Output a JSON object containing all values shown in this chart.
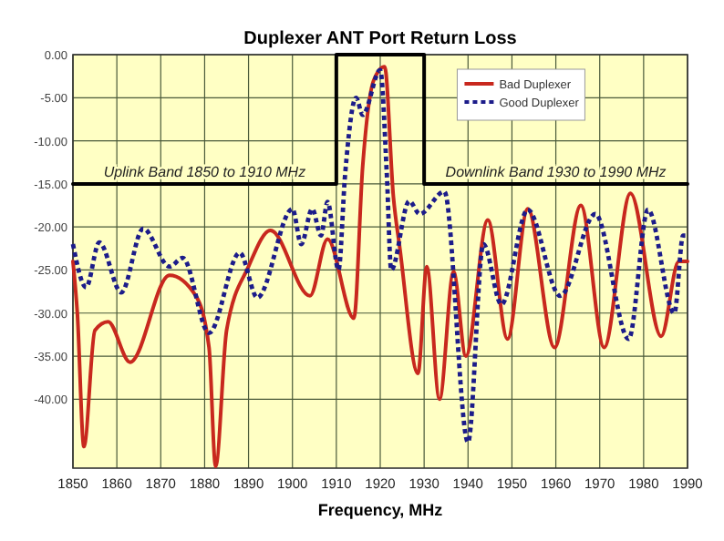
{
  "chart_data": {
    "type": "line",
    "title": "Duplexer ANT Port Return Loss",
    "xlabel": "Frequency, MHz",
    "xlim": [
      1850,
      1990
    ],
    "xticks": [
      1850,
      1860,
      1870,
      1880,
      1890,
      1900,
      1910,
      1920,
      1930,
      1940,
      1950,
      1960,
      1970,
      1980,
      1990
    ],
    "ylim": [
      -48,
      0
    ],
    "yticks": [
      {
        "value": 0,
        "label": "0.00"
      },
      {
        "value": -5,
        "label": "-5.00"
      },
      {
        "value": -10,
        "label": "-10.00"
      },
      {
        "value": -15,
        "label": "-15.00"
      },
      {
        "value": -20,
        "label": "-20.00"
      },
      {
        "value": -25,
        "label": "-25.00"
      },
      {
        "value": -30,
        "label": "-30.00"
      },
      {
        "value": -35,
        "label": "-35.00"
      },
      {
        "value": -40,
        "label": "-40.00"
      }
    ],
    "grid": true,
    "legend": "top",
    "marker": "none",
    "series": [
      {
        "name": "Bad Duplexer",
        "color": "#c8281e",
        "line_style": "solid",
        "x": [
          1850,
          1851,
          1852.5,
          1855,
          1858,
          1863,
          1872,
          1878,
          1881,
          1882.5,
          1885,
          1890,
          1895,
          1904,
          1908,
          1914,
          1916,
          1918.5,
          1921,
          1923,
          1924.5,
          1928.6,
          1930.6,
          1933.5,
          1936.7,
          1939.5,
          1944.5,
          1949,
          1953.6,
          1959.7,
          1965.7,
          1971,
          1977,
          1984,
          1988,
          1990
        ],
        "values": [
          -24,
          -30,
          -45.5,
          -32,
          -31,
          -35.7,
          -25.6,
          -28,
          -34,
          -47.8,
          -32,
          -24.6,
          -20.4,
          -28,
          -21.4,
          -30.6,
          -13,
          -3,
          -1.4,
          -16.5,
          -22.6,
          -37,
          -24.6,
          -40,
          -25.2,
          -35,
          -19.2,
          -33,
          -17.9,
          -34,
          -17.5,
          -34,
          -16.1,
          -32.7,
          -24,
          -24
        ]
      },
      {
        "name": "Good Duplexer",
        "color": "#1c1c8a",
        "line_style": "dotted",
        "x": [
          1850,
          1853,
          1856,
          1861,
          1866,
          1872,
          1875,
          1881,
          1888,
          1892,
          1900,
          1902,
          1904.5,
          1906.5,
          1908,
          1910.5,
          1912,
          1914.5,
          1916,
          1920,
          1921.5,
          1922.5,
          1926.6,
          1929,
          1934.6,
          1940,
          1943.5,
          1947.6,
          1953.6,
          1961,
          1969,
          1976.6,
          1981,
          1987,
          1989,
          1990
        ],
        "values": [
          -22,
          -27,
          -21.8,
          -27.6,
          -20.2,
          -24.6,
          -23.6,
          -32.3,
          -23,
          -28.2,
          -17.9,
          -22,
          -17.9,
          -21,
          -17.1,
          -25,
          -13.9,
          -5,
          -7,
          -1.8,
          -13.9,
          -25,
          -17,
          -18.5,
          -15.9,
          -45,
          -22,
          -29,
          -18,
          -28,
          -18.5,
          -33,
          -18,
          -30,
          -21,
          -21
        ]
      },
      {
        "color": "#000000",
        "line_style": "solid",
        "x": [
          1850,
          1910,
          1910,
          1930,
          1930,
          1990
        ],
        "values": [
          -15,
          -15,
          0,
          0,
          -15,
          -15
        ]
      }
    ],
    "annotations": [
      {
        "text": "Uplink Band 1850 to 1910 MHz",
        "x": 1880,
        "y": -15
      },
      {
        "text": "Downlink Band 1930 to 1990 MHz",
        "x": 1960,
        "y": -15
      }
    ]
  }
}
